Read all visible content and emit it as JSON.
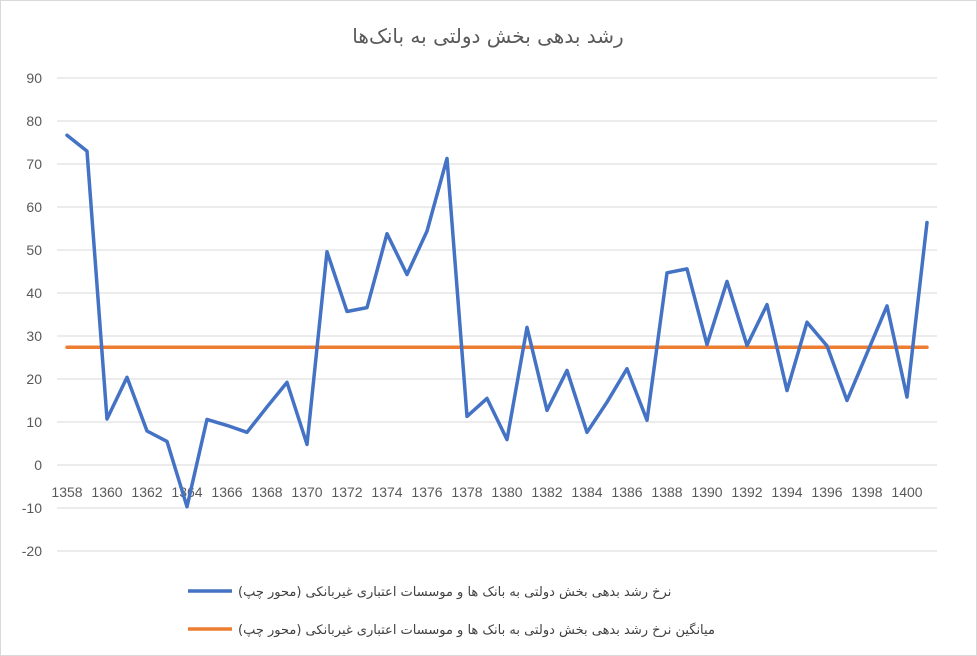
{
  "chart_data": {
    "type": "line",
    "title": "رشد بدهی بخش دولتی به بانک‌ها",
    "xlabel": "",
    "ylabel": "",
    "ylim": [
      -20,
      90
    ],
    "yticks": [
      -20,
      -10,
      0,
      10,
      20,
      30,
      40,
      50,
      60,
      70,
      80,
      90
    ],
    "x": [
      1358,
      1359,
      1360,
      1361,
      1362,
      1363,
      1364,
      1365,
      1366,
      1367,
      1368,
      1369,
      1370,
      1371,
      1372,
      1373,
      1374,
      1375,
      1376,
      1377,
      1378,
      1379,
      1380,
      1381,
      1382,
      1383,
      1384,
      1385,
      1386,
      1387,
      1388,
      1389,
      1390,
      1391,
      1392,
      1393,
      1394,
      1395,
      1396,
      1397,
      1398,
      1399,
      1400,
      1401
    ],
    "xtick_labels": [
      "1358",
      "1360",
      "1362",
      "1364",
      "1366",
      "1368",
      "1370",
      "1372",
      "1374",
      "1376",
      "1378",
      "1380",
      "1382",
      "1384",
      "1386",
      "1388",
      "1390",
      "1392",
      "1394",
      "1396",
      "1398",
      "1400"
    ],
    "grid": true,
    "legend_position": "bottom",
    "series": [
      {
        "name": "نرخ رشد بدهی بخش دولتی به بانک ها و موسسات اعتباری غیربانکی (محور چپ)",
        "color": "#4472C4",
        "values": [
          76.7,
          73,
          10.7,
          20.4,
          7.9,
          5.5,
          -9.7,
          10.6,
          9.2,
          7.6,
          13.5,
          19.2,
          4.8,
          49.6,
          35.7,
          36.6,
          53.8,
          44.3,
          54.4,
          71.3,
          11.3,
          15.5,
          5.9,
          32,
          12.7,
          22,
          7.6,
          14.6,
          22.4,
          10.4,
          44.7,
          45.6,
          28,
          42.7,
          27.8,
          37.3,
          17.3,
          33.2,
          27.7,
          15,
          26,
          37,
          15.8,
          56.4
        ]
      },
      {
        "name": "میانگین نرخ رشد بدهی بخش دولتی به بانک ها و موسسات اعتباری غیربانکی (محور چپ)",
        "color": "#ED7D31",
        "values": [
          27.4,
          27.4,
          27.4,
          27.4,
          27.4,
          27.4,
          27.4,
          27.4,
          27.4,
          27.4,
          27.4,
          27.4,
          27.4,
          27.4,
          27.4,
          27.4,
          27.4,
          27.4,
          27.4,
          27.4,
          27.4,
          27.4,
          27.4,
          27.4,
          27.4,
          27.4,
          27.4,
          27.4,
          27.4,
          27.4,
          27.4,
          27.4,
          27.4,
          27.4,
          27.4,
          27.4,
          27.4,
          27.4,
          27.4,
          27.4,
          27.4,
          27.4,
          27.4,
          27.4
        ]
      }
    ]
  }
}
